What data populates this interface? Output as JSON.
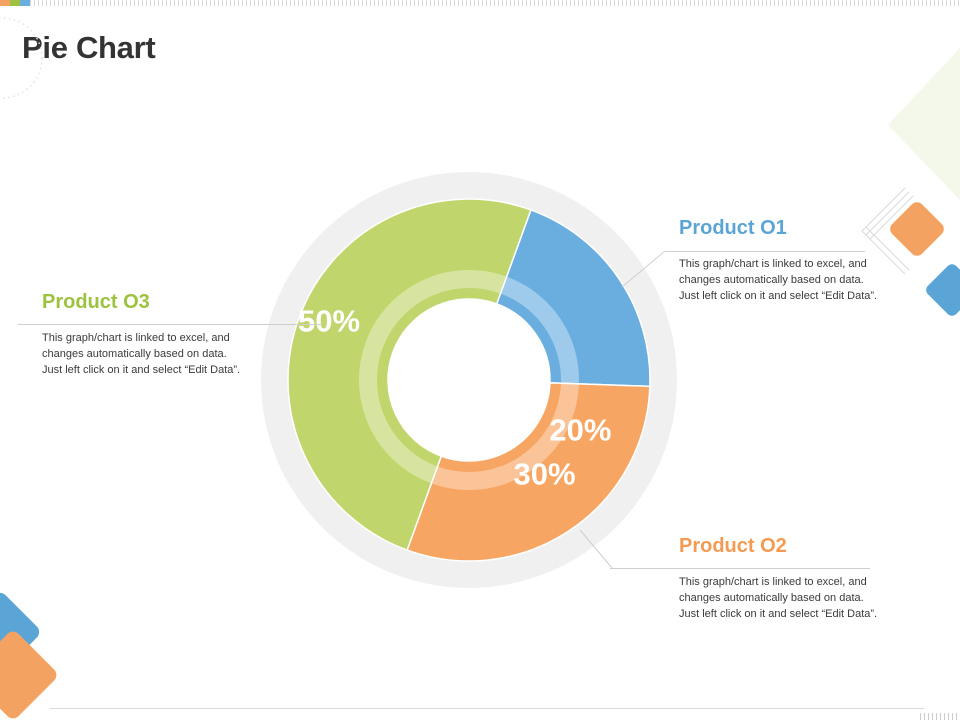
{
  "page": {
    "title": "Pie Chart"
  },
  "colors": {
    "green": "#c0d66c",
    "blue": "#6aaee0",
    "orange": "#f7a562",
    "ring": "#f0f0f0",
    "title": "#333333"
  },
  "labels": [
    {
      "name": "Product O1",
      "value_label": "20%",
      "color": "#5ba5d6",
      "desc": "This graph/chart is linked to excel, and changes automatically based on data. Just left click on it and select “Edit Data”."
    },
    {
      "name": "Product O2",
      "value_label": "30%",
      "color": "#f39b52",
      "desc": "This graph/chart is linked to excel, and changes automatically based on data. Just left click on it and select “Edit Data”."
    },
    {
      "name": "Product O3",
      "value_label": "50%",
      "color": "#9dc23f",
      "desc": "This graph/chart is linked to excel, and changes automatically based on data. Just left click on it and select “Edit Data”."
    }
  ],
  "chart_data": {
    "type": "pie",
    "categories": [
      "Product O1",
      "Product O2",
      "Product O3"
    ],
    "values": [
      20,
      30,
      50
    ],
    "data_labels": [
      "20%",
      "30%",
      "50%"
    ],
    "colors": [
      "#6aaee0",
      "#f7a562",
      "#c0d66c"
    ],
    "title": "Pie Chart"
  }
}
